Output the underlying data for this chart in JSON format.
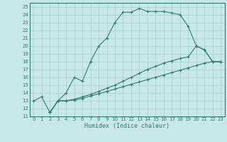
{
  "xlabel": "Humidex (Indice chaleur)",
  "xlim": [
    -0.5,
    23.5
  ],
  "ylim": [
    11,
    25.5
  ],
  "xticks": [
    0,
    1,
    2,
    3,
    4,
    5,
    6,
    7,
    8,
    9,
    10,
    11,
    12,
    13,
    14,
    15,
    16,
    17,
    18,
    19,
    20,
    21,
    22,
    23
  ],
  "yticks": [
    11,
    12,
    13,
    14,
    15,
    16,
    17,
    18,
    19,
    20,
    21,
    22,
    23,
    24,
    25
  ],
  "bg_color": "#c8e8e8",
  "line_color": "#2e7d6e",
  "grid_color": "#a8cccc",
  "line1_x": [
    0,
    1,
    2,
    3,
    4,
    5,
    6,
    7,
    8,
    9,
    10,
    11,
    12,
    13,
    14,
    15,
    16,
    17,
    18,
    19,
    20,
    21,
    22,
    23
  ],
  "line1_y": [
    13.0,
    13.5,
    11.5,
    13.0,
    14.0,
    16.0,
    15.5,
    18.0,
    20.0,
    21.0,
    23.0,
    24.3,
    24.3,
    24.8,
    24.4,
    24.4,
    24.4,
    24.2,
    24.0,
    22.5,
    20.0,
    19.5,
    18.0,
    18.0
  ],
  "line2_x": [
    2,
    3,
    4,
    5,
    6,
    7,
    8,
    9,
    10,
    11,
    12,
    13,
    14,
    15,
    16,
    17,
    18,
    19,
    20,
    21,
    22,
    23
  ],
  "line2_y": [
    11.5,
    13.0,
    13.0,
    13.2,
    13.5,
    13.8,
    14.2,
    14.6,
    15.0,
    15.5,
    16.0,
    16.5,
    17.0,
    17.4,
    17.8,
    18.1,
    18.4,
    18.6,
    20.0,
    19.5,
    18.0,
    18.0
  ],
  "line3_x": [
    2,
    3,
    4,
    5,
    6,
    7,
    8,
    9,
    10,
    11,
    12,
    13,
    14,
    15,
    16,
    17,
    18,
    19,
    20,
    21,
    22,
    23
  ],
  "line3_y": [
    11.5,
    13.0,
    13.0,
    13.1,
    13.3,
    13.6,
    13.9,
    14.2,
    14.5,
    14.8,
    15.1,
    15.4,
    15.7,
    16.0,
    16.3,
    16.6,
    16.9,
    17.2,
    17.5,
    17.8,
    18.0,
    18.0
  ]
}
